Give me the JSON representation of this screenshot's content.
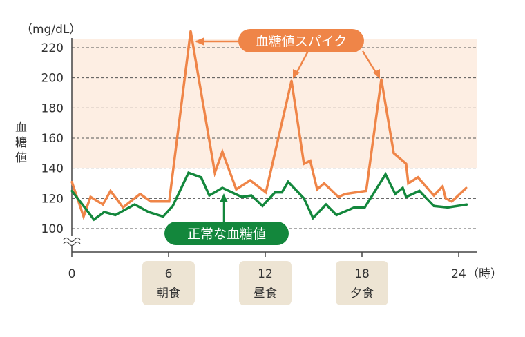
{
  "chart_data": {
    "type": "line",
    "unit_label": "（mg/dL）",
    "ylabel": "血糖値",
    "xlabel_unit": "（時）",
    "ylim": [
      100,
      220
    ],
    "xlim": [
      0,
      24
    ],
    "y_ticks": [
      100,
      120,
      140,
      160,
      180,
      200,
      220
    ],
    "x_ticks": [
      {
        "value": 0,
        "label": "0",
        "meal": ""
      },
      {
        "value": 6,
        "label": "6",
        "meal": "朝食"
      },
      {
        "value": 12,
        "label": "12",
        "meal": "昼食"
      },
      {
        "value": 18,
        "label": "18",
        "meal": "夕食"
      },
      {
        "value": 24,
        "label": "24",
        "meal": ""
      }
    ],
    "shaded_range": [
      140,
      220
    ],
    "grid": true,
    "series": [
      {
        "name": "血糖値スパイク",
        "color": "#ef8548",
        "x": [
          0,
          0.73,
          1.16,
          1.93,
          2.4,
          3.17,
          4.24,
          4.89,
          6.04,
          7.37,
          8.87,
          9.34,
          10.2,
          11.06,
          12.04,
          13.63,
          14.4,
          14.79,
          15.22,
          15.65,
          16.54,
          16.97,
          18.26,
          19.2,
          19.97,
          20.74,
          20.87,
          21.47,
          22.46,
          23.0,
          23.2,
          23.57,
          24.47
        ],
        "y": [
          131,
          108,
          121,
          116,
          125,
          114,
          123,
          118,
          118,
          231,
          137,
          151,
          126,
          132,
          124,
          198,
          143,
          145,
          126,
          130,
          121,
          123,
          125,
          199,
          150,
          143,
          130,
          134,
          122,
          128,
          120,
          118,
          127
        ]
      },
      {
        "name": "正常な血糖値",
        "color": "#13873c",
        "x": [
          0,
          1.37,
          2.01,
          2.7,
          3.9,
          4.76,
          5.66,
          6.26,
          7.24,
          8.02,
          8.53,
          9.34,
          10.54,
          11.14,
          11.83,
          12.6,
          13.03,
          13.42,
          14.4,
          14.96,
          15.77,
          16.42,
          17.53,
          18.17,
          19.46,
          20.06,
          20.53,
          20.74,
          21.56,
          22.46,
          23.32,
          24.52
        ],
        "y": [
          125,
          106,
          111,
          109,
          116,
          111,
          108,
          115,
          137,
          134,
          122,
          127,
          121,
          122,
          115,
          124,
          124,
          131,
          120,
          107,
          116,
          109,
          114,
          114,
          136,
          123,
          127,
          121,
          125,
          115,
          114,
          116
        ]
      }
    ],
    "annotations": {
      "spike_label": "血糖値スパイク",
      "normal_label": "正常な血糖値"
    }
  }
}
